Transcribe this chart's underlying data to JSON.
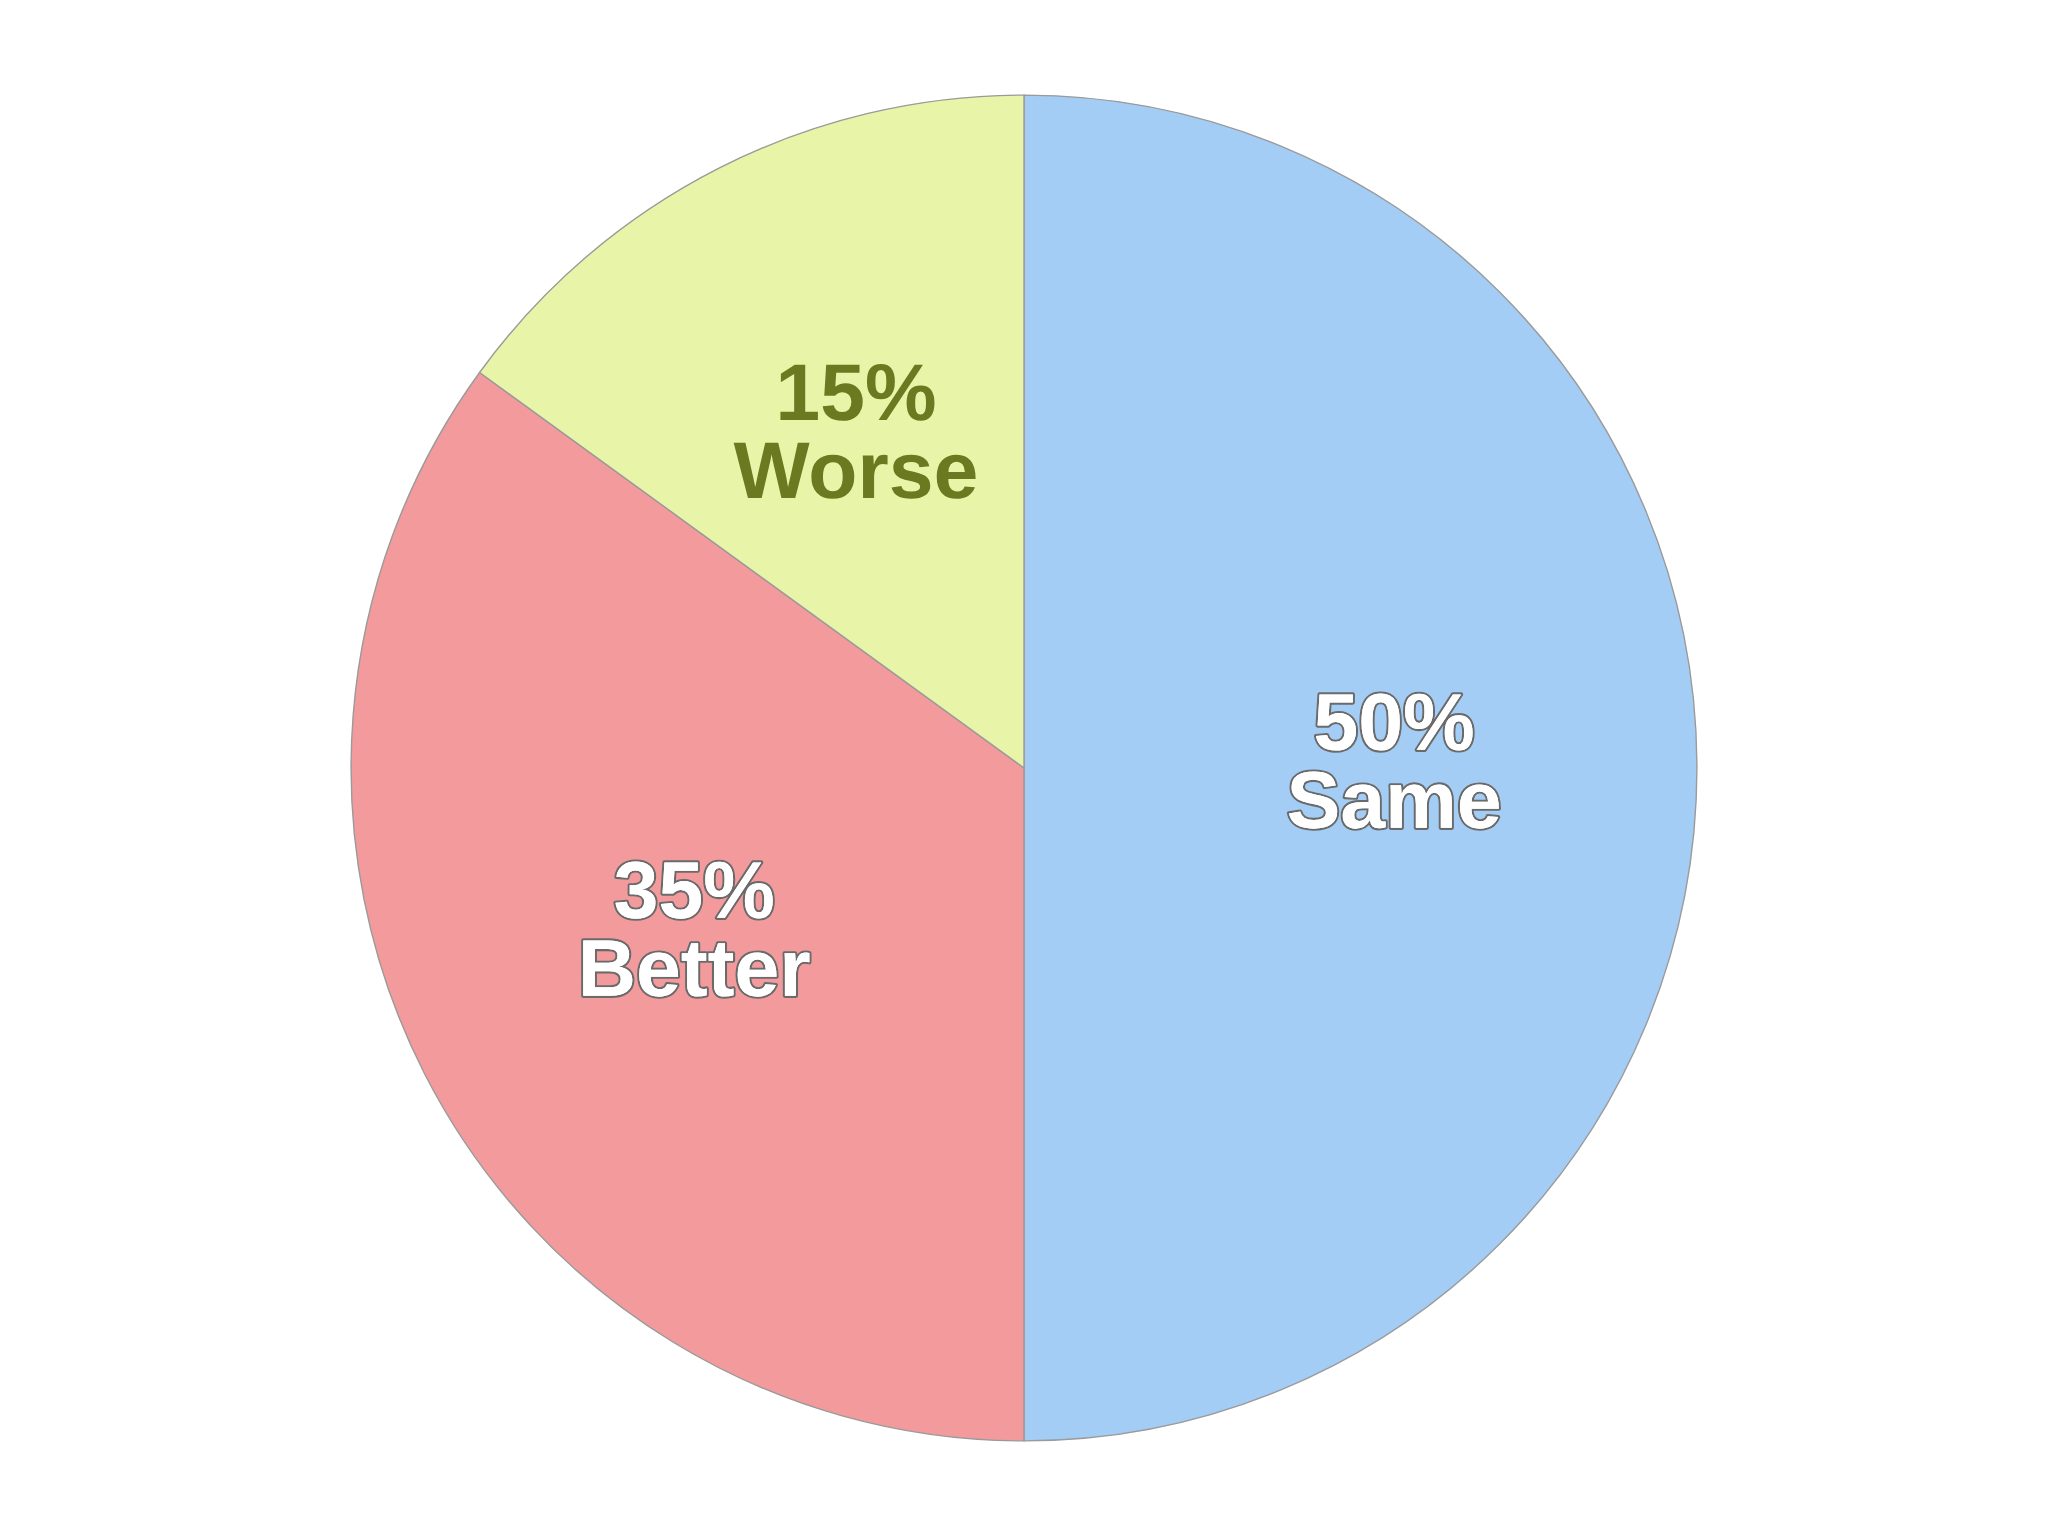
{
  "chart_data": {
    "type": "pie",
    "categories": [
      "Same",
      "Better",
      "Worse"
    ],
    "values": [
      50,
      35,
      15
    ],
    "colors": [
      "#a3cdf5",
      "#f29a9c",
      "#e8f5a8"
    ],
    "value_labels": [
      "50%",
      "35%",
      "15%"
    ]
  }
}
